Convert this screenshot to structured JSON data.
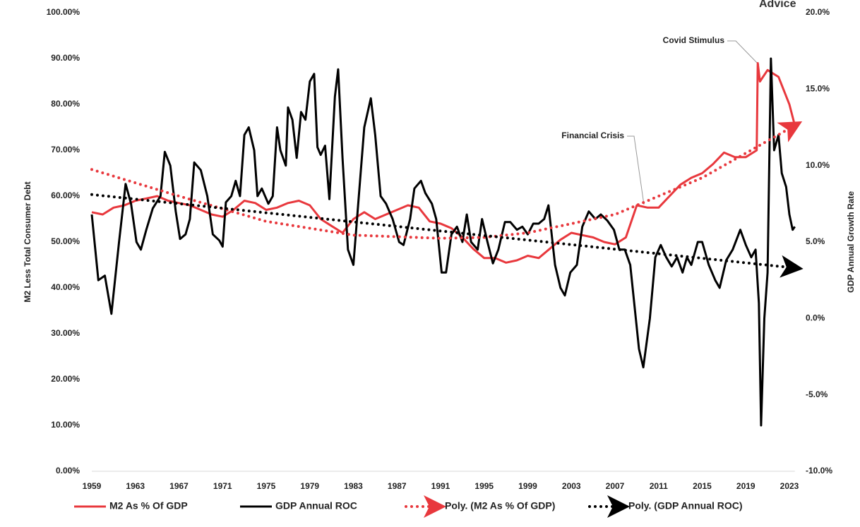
{
  "chart_data": {
    "type": "line",
    "logo_text": "Advice",
    "ylabel": "M2 Less Total Consumer Debt",
    "y2label": "GDP Annual Growth Rate",
    "annotations": [
      "Covid Stimulus",
      "Financial Crisis"
    ],
    "xlim": [
      1959,
      2023.5
    ],
    "xticks": [
      1959,
      1963,
      1967,
      1971,
      1975,
      1979,
      1983,
      1987,
      1991,
      1995,
      1999,
      2003,
      2007,
      2011,
      2015,
      2019,
      2023
    ],
    "ylim": [
      0,
      100
    ],
    "yticks": [
      {
        "value": 0,
        "label": "0.00%"
      },
      {
        "value": 10,
        "label": "10.00%"
      },
      {
        "value": 20,
        "label": "20.00%"
      },
      {
        "value": 30,
        "label": "30.00%"
      },
      {
        "value": 40,
        "label": "40.00%"
      },
      {
        "value": 50,
        "label": "50.00%"
      },
      {
        "value": 60,
        "label": "60.00%"
      },
      {
        "value": 70,
        "label": "70.00%"
      },
      {
        "value": 80,
        "label": "80.00%"
      },
      {
        "value": 90,
        "label": "90.00%"
      },
      {
        "value": 100,
        "label": "100.00%"
      }
    ],
    "y2lim": [
      -10,
      20
    ],
    "y2ticks": [
      {
        "value": -10,
        "label": "-10.0%"
      },
      {
        "value": -5,
        "label": "-5.0%"
      },
      {
        "value": 0,
        "label": "0.0%"
      },
      {
        "value": 5,
        "label": "5.0%"
      },
      {
        "value": 10,
        "label": "10.0%"
      },
      {
        "value": 15,
        "label": "15.0%"
      },
      {
        "value": 20,
        "label": "20.0%"
      }
    ],
    "legend": "bottom",
    "series": [
      {
        "name": "M2 As % Of GDP",
        "color": "#e8383d",
        "style": "solid",
        "axis": "y",
        "x": [
          1959,
          1960,
          1961,
          1962,
          1963,
          1964,
          1965,
          1966,
          1967,
          1968,
          1969,
          1970,
          1971,
          1972,
          1973,
          1974,
          1975,
          1976,
          1977,
          1978,
          1979,
          1980,
          1981,
          1982,
          1983,
          1984,
          1985,
          1986,
          1987,
          1988,
          1989,
          1990,
          1991,
          1992,
          1993,
          1994,
          1995,
          1996,
          1997,
          1998,
          1999,
          2000,
          2001,
          2002,
          2003,
          2004,
          2005,
          2006,
          2007,
          2008,
          2009,
          2010,
          2011,
          2012,
          2013,
          2014,
          2015,
          2016,
          2017,
          2018,
          2019,
          2020,
          2020.1,
          2020.3,
          2021,
          2022,
          2023,
          2023.5
        ],
        "values": [
          56.5,
          56,
          57.5,
          58,
          59,
          59.5,
          60,
          59,
          58.5,
          58,
          57,
          56,
          55.5,
          57,
          59,
          58.5,
          57,
          57.5,
          58.5,
          59,
          58,
          55,
          53.5,
          52,
          55,
          56.5,
          55,
          56,
          57,
          58,
          57.5,
          54.5,
          54,
          53,
          51,
          48.5,
          46.5,
          46.5,
          45.5,
          46,
          47,
          46.5,
          48.5,
          50.5,
          52,
          51.5,
          51,
          50,
          49.5,
          51,
          58,
          57.5,
          57.5,
          60,
          62.5,
          64,
          65,
          67,
          69.5,
          68.5,
          68.5,
          70,
          89,
          85,
          87.5,
          86,
          80,
          75.4
        ]
      },
      {
        "name": "GDP Annual ROC",
        "color": "#000000",
        "style": "solid",
        "axis": "y2",
        "x": [
          1959,
          1959.6,
          1960.2,
          1960.8,
          1961.5,
          1962.1,
          1962.6,
          1963.1,
          1963.5,
          1964,
          1964.6,
          1965.3,
          1965.7,
          1966.2,
          1966.7,
          1967.1,
          1967.6,
          1968,
          1968.4,
          1969,
          1969.6,
          1970.1,
          1970.7,
          1971,
          1971.3,
          1971.8,
          1972.2,
          1972.6,
          1973,
          1973.4,
          1973.9,
          1974.2,
          1974.6,
          1975.2,
          1975.6,
          1976,
          1976.3,
          1976.8,
          1977,
          1977.4,
          1977.8,
          1978.2,
          1978.6,
          1979,
          1979.4,
          1979.7,
          1980,
          1980.4,
          1980.8,
          1981.3,
          1981.6,
          1982,
          1982.5,
          1983,
          1983.5,
          1984,
          1984.6,
          1985,
          1985.5,
          1986,
          1986.6,
          1987.2,
          1987.6,
          1988.2,
          1988.6,
          1989.2,
          1989.6,
          1990.2,
          1990.6,
          1991.1,
          1991.5,
          1992,
          1992.5,
          1993,
          1993.4,
          1993.8,
          1994.4,
          1994.8,
          1995.3,
          1995.8,
          1996.3,
          1996.9,
          1997.4,
          1998,
          1998.5,
          1999,
          1999.5,
          2000,
          2000.5,
          2000.9,
          2001.5,
          2002,
          2002.4,
          2002.9,
          2003.5,
          2004,
          2004.6,
          2005.2,
          2005.7,
          2006.3,
          2006.9,
          2007.4,
          2007.9,
          2008.4,
          2009.2,
          2009.6,
          2010.2,
          2010.7,
          2011.2,
          2011.7,
          2012.2,
          2012.7,
          2013.2,
          2013.6,
          2014,
          2014.6,
          2015,
          2015.6,
          2016.2,
          2016.6,
          2017.2,
          2017.8,
          2018.5,
          2019,
          2019.5,
          2019.9,
          2020.2,
          2020.4,
          2020.7,
          2021,
          2021.3,
          2021.6,
          2022,
          2022.3,
          2022.7,
          2023,
          2023.3,
          2023.5
        ],
        "values": [
          6.8,
          2.5,
          2.8,
          0.3,
          5,
          8.8,
          7.5,
          5,
          4.5,
          5.8,
          7.2,
          8,
          10.9,
          10,
          7,
          5.2,
          5.5,
          6.5,
          10.2,
          9.7,
          8,
          5.5,
          5.1,
          4.7,
          7.6,
          8,
          9,
          8,
          12,
          12.5,
          11,
          8,
          8.5,
          7.5,
          8,
          12.5,
          11,
          10,
          13.8,
          13,
          10.5,
          13.5,
          13,
          15.5,
          16,
          11.2,
          10.7,
          11.3,
          7.8,
          14.5,
          16.3,
          10.5,
          4.5,
          3.5,
          8,
          12.5,
          14.4,
          12,
          8,
          7.5,
          6.5,
          5,
          4.8,
          6.5,
          8.5,
          9,
          8.2,
          7.5,
          6.5,
          3,
          3,
          5.5,
          6,
          5,
          6.8,
          5,
          4.5,
          6.5,
          5,
          3.6,
          4.5,
          6.3,
          6.3,
          5.8,
          6,
          5.5,
          6.2,
          6.2,
          6.5,
          7.4,
          3.5,
          2,
          1.5,
          3,
          3.5,
          6,
          7,
          6.5,
          6.8,
          6.4,
          5.8,
          4.5,
          4.5,
          3.5,
          -2,
          -3.2,
          0,
          4,
          4.8,
          4,
          3.4,
          4,
          3,
          4,
          3.5,
          5,
          5,
          3.5,
          2.5,
          2,
          3.8,
          4.5,
          5.8,
          4.8,
          4,
          4.5,
          1,
          -7,
          0,
          3,
          17,
          11,
          12,
          9.5,
          8.6,
          6.8,
          5.8,
          6
        ]
      },
      {
        "name": "Poly. (M2 As % Of GDP)",
        "color": "#e8383d",
        "style": "dotted",
        "axis": "y",
        "x": [
          1959,
          1967,
          1975,
          1983,
          1991,
          1995,
          1999,
          2007,
          2015,
          2023.5
        ],
        "values": [
          65.8,
          60,
          54.5,
          51.5,
          50.8,
          51,
          52,
          56,
          64,
          75.4
        ]
      },
      {
        "name": "Poly. (GDP Annual ROC)",
        "color": "#000000",
        "style": "dotted",
        "axis": "y2",
        "x": [
          1959,
          2023.5
        ],
        "values": [
          8.1,
          3.3
        ]
      }
    ]
  }
}
